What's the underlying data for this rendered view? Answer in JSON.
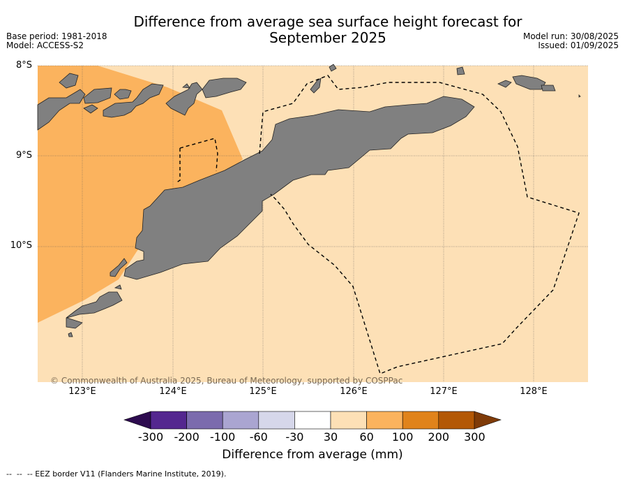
{
  "title_line1": "Difference from average sea surface height forecast for",
  "title_line2": "September 2025",
  "meta_left": [
    "Base period: 1981-2018",
    "Model: ACCESS-S2"
  ],
  "meta_right": [
    "Model run: 30/08/2025",
    "Issued: 01/09/2025"
  ],
  "lat_labels": [
    "8°S",
    "9°S",
    "10°S"
  ],
  "lon_labels": [
    "123°E",
    "124°E",
    "125°E",
    "126°E",
    "127°E",
    "128°E"
  ],
  "copyright": "© Commonwealth of Australia 2025, Bureau of Meteorology, supported by COSPPac",
  "colorbar": {
    "ticks": [
      "-300",
      "-200",
      "-100",
      "-60",
      "-30",
      "30",
      "60",
      "100",
      "200",
      "300"
    ],
    "colors": [
      "#54278f",
      "#7b6bad",
      "#aaa5d1",
      "#d6d7ea",
      "#ffffff",
      "#fde0b6",
      "#fbb35e",
      "#e0831b",
      "#b35806"
    ],
    "under_color": "#2d0b4f",
    "over_color": "#7f3b08",
    "label": "Difference from average (mm)"
  },
  "colors": {
    "land": "#808080",
    "ocean_30_60": "#fde0b6",
    "ocean_60_100": "#fbb35e"
  },
  "legend_note": "-- EEZ border V11 (Flanders Marine Institute, 2019)."
}
